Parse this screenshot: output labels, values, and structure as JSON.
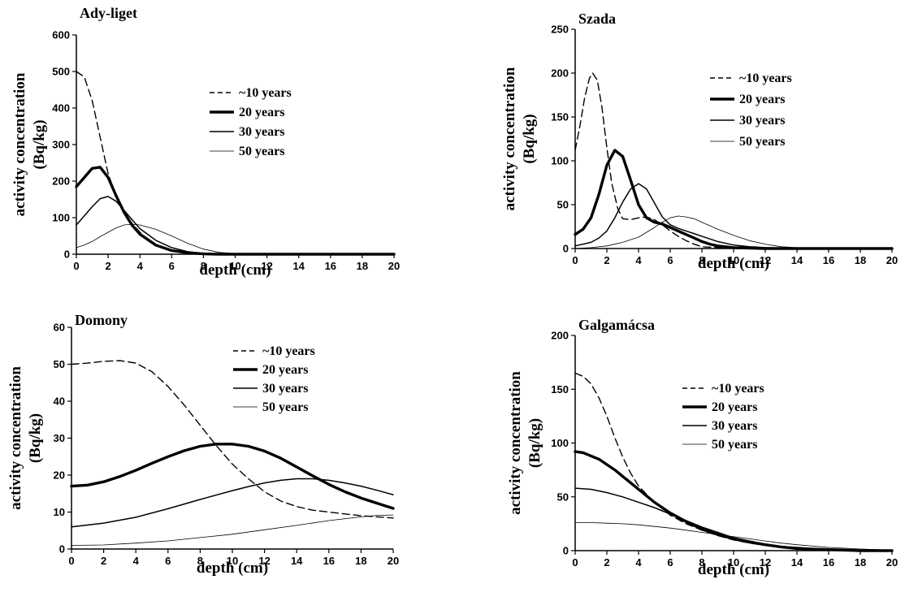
{
  "chart_data": [
    {
      "type": "line",
      "title": "Ady-liget",
      "xlabel": "depth (cm)",
      "ylabel": [
        "activity concentration",
        "(Bq/kg)"
      ],
      "xlim": [
        0,
        20
      ],
      "ylim": [
        0,
        600
      ],
      "xticks": [
        0,
        2,
        4,
        6,
        8,
        10,
        12,
        14,
        16,
        18,
        20
      ],
      "yticks": [
        0,
        100,
        200,
        300,
        400,
        500,
        600
      ],
      "legend_position": "top-right",
      "series": [
        {
          "name": "~10 years",
          "style": "dashed",
          "x": [
            0,
            0.5,
            1,
            1.5,
            2,
            2.5,
            3,
            3.5,
            4,
            4.5,
            5,
            6,
            7,
            8,
            9,
            10,
            12,
            14,
            16,
            18,
            20
          ],
          "y": [
            500,
            485,
            420,
            320,
            220,
            160,
            115,
            85,
            60,
            40,
            25,
            10,
            3,
            1,
            0,
            0,
            0,
            0,
            0,
            0,
            0
          ]
        },
        {
          "name": "20 years",
          "style": "thick",
          "x": [
            0,
            0.5,
            1,
            1.5,
            2,
            2.5,
            3,
            3.5,
            4,
            5,
            6,
            7,
            8,
            9,
            10,
            12,
            14,
            16,
            18,
            20
          ],
          "y": [
            185,
            210,
            235,
            238,
            210,
            160,
            115,
            80,
            55,
            25,
            10,
            4,
            1,
            0,
            0,
            0,
            0,
            0,
            0,
            0
          ]
        },
        {
          "name": "30 years",
          "style": "medium",
          "x": [
            0,
            0.5,
            1,
            1.5,
            2,
            2.5,
            3,
            3.5,
            4,
            5,
            6,
            7,
            8,
            9,
            10,
            12,
            14,
            16,
            18,
            20
          ],
          "y": [
            80,
            105,
            130,
            152,
            158,
            145,
            120,
            95,
            70,
            38,
            18,
            7,
            2,
            1,
            0,
            0,
            0,
            0,
            0,
            0
          ]
        },
        {
          "name": "50 years",
          "style": "thin",
          "x": [
            0,
            0.5,
            1,
            1.5,
            2,
            2.5,
            3,
            3.5,
            4,
            5,
            6,
            7,
            8,
            9,
            10,
            12,
            14,
            16,
            18,
            20
          ],
          "y": [
            18,
            25,
            35,
            48,
            60,
            72,
            80,
            82,
            80,
            68,
            50,
            30,
            14,
            5,
            2,
            0,
            0,
            0,
            0,
            0
          ]
        }
      ]
    },
    {
      "type": "line",
      "title": "Szada",
      "xlabel": "depth (cm)",
      "ylabel": [
        "activity concentration",
        "(Bq/kg)"
      ],
      "xlim": [
        0,
        20
      ],
      "ylim": [
        0,
        250
      ],
      "xticks": [
        0,
        2,
        4,
        6,
        8,
        10,
        12,
        14,
        16,
        18,
        20
      ],
      "yticks": [
        0,
        50,
        100,
        150,
        200,
        250
      ],
      "legend_position": "top-right",
      "series": [
        {
          "name": "~10 years",
          "style": "dashed",
          "x": [
            0,
            0.3,
            0.6,
            0.9,
            1.1,
            1.4,
            1.7,
            2,
            2.3,
            2.7,
            3,
            3.5,
            4,
            4.5,
            5,
            5.5,
            6,
            6.5,
            7,
            7.5,
            8,
            9,
            10,
            12,
            14,
            16,
            18,
            20
          ],
          "y": [
            112,
            140,
            172,
            194,
            200,
            192,
            160,
            115,
            75,
            45,
            34,
            33,
            35,
            36,
            33,
            27,
            20,
            14,
            9,
            5,
            2,
            1,
            0,
            0,
            0,
            0,
            0,
            0
          ]
        },
        {
          "name": "20 years",
          "style": "thick",
          "x": [
            0,
            0.5,
            1,
            1.5,
            2,
            2.5,
            3,
            3.5,
            4,
            4.5,
            5,
            5.5,
            6,
            6.5,
            7,
            7.5,
            8,
            8.5,
            9,
            10,
            12,
            14,
            16,
            18,
            20
          ],
          "y": [
            16,
            22,
            35,
            62,
            95,
            112,
            105,
            78,
            50,
            35,
            30,
            28,
            24,
            20,
            16,
            12,
            8,
            5,
            3,
            1,
            0,
            0,
            0,
            0,
            0
          ]
        },
        {
          "name": "30 years",
          "style": "medium",
          "x": [
            0,
            1,
            1.5,
            2,
            2.5,
            3,
            3.5,
            4,
            4.5,
            5,
            5.5,
            6,
            6.5,
            7,
            7.5,
            8,
            9,
            10,
            11,
            12,
            14,
            16,
            18,
            20
          ],
          "y": [
            3,
            7,
            12,
            20,
            35,
            53,
            68,
            74,
            68,
            52,
            36,
            27,
            23,
            20,
            17,
            14,
            8,
            4,
            2,
            1,
            0,
            0,
            0,
            0
          ]
        },
        {
          "name": "50 years",
          "style": "thin",
          "x": [
            0,
            1,
            2,
            3,
            4,
            5,
            5.5,
            6,
            6.5,
            7,
            7.5,
            8,
            9,
            10,
            11,
            12,
            13,
            14,
            16,
            18,
            20
          ],
          "y": [
            0,
            1,
            3,
            7,
            13,
            24,
            30,
            35,
            37,
            36,
            34,
            30,
            22,
            15,
            9,
            5,
            2,
            1,
            0,
            0,
            0
          ]
        }
      ]
    },
    {
      "type": "line",
      "title": "Domony",
      "xlabel": "depth (cm)",
      "ylabel": [
        "activity concentration",
        "(Bq/kg)"
      ],
      "xlim": [
        0,
        20
      ],
      "ylim": [
        0,
        60
      ],
      "xticks": [
        0,
        2,
        4,
        6,
        8,
        10,
        12,
        14,
        16,
        18,
        20
      ],
      "yticks": [
        0,
        10,
        20,
        30,
        40,
        50,
        60
      ],
      "legend_position": "top-right",
      "series": [
        {
          "name": "~10 years",
          "style": "dashed",
          "x": [
            0,
            1,
            2,
            3,
            4,
            5,
            6,
            7,
            8,
            9,
            10,
            11,
            12,
            13,
            14,
            15,
            16,
            17,
            18,
            19,
            20
          ],
          "y": [
            50,
            50.3,
            50.8,
            51,
            50.3,
            48,
            44,
            39,
            33.5,
            28,
            23,
            19,
            15.5,
            13,
            11.5,
            10.5,
            10,
            9.5,
            9,
            8.7,
            8.4
          ]
        },
        {
          "name": "20 years",
          "style": "thick",
          "x": [
            0,
            1,
            2,
            3,
            4,
            5,
            6,
            7,
            8,
            9,
            10,
            11,
            12,
            13,
            14,
            15,
            16,
            17,
            18,
            19,
            20
          ],
          "y": [
            17,
            17.3,
            18.2,
            19.6,
            21.3,
            23.2,
            25,
            26.6,
            27.8,
            28.4,
            28.4,
            27.8,
            26.5,
            24.6,
            22.2,
            19.8,
            17.5,
            15.5,
            13.8,
            12.4,
            11
          ]
        },
        {
          "name": "30 years",
          "style": "medium",
          "x": [
            0,
            2,
            4,
            6,
            8,
            10,
            11,
            12,
            13,
            14,
            15,
            16,
            17,
            18,
            19,
            20
          ],
          "y": [
            6,
            7,
            8.6,
            10.9,
            13.4,
            15.8,
            16.9,
            17.9,
            18.6,
            19,
            19,
            18.6,
            17.9,
            17,
            15.9,
            14.7
          ]
        },
        {
          "name": "50 years",
          "style": "thin",
          "x": [
            0,
            2,
            4,
            6,
            8,
            10,
            12,
            14,
            16,
            18,
            19,
            20
          ],
          "y": [
            1,
            1.1,
            1.6,
            2.2,
            3.1,
            4,
            5.2,
            6.4,
            7.7,
            8.7,
            9.1,
            9.2
          ]
        }
      ]
    },
    {
      "type": "line",
      "title": "Galgamácsa",
      "xlabel": "depth (cm)",
      "ylabel": [
        "activity concentration",
        "(Bq/kg)"
      ],
      "xlim": [
        0,
        20
      ],
      "ylim": [
        0,
        200
      ],
      "xticks": [
        0,
        2,
        4,
        6,
        8,
        10,
        12,
        14,
        16,
        18,
        20
      ],
      "yticks": [
        0,
        50,
        100,
        150,
        200
      ],
      "legend_position": "top-right",
      "series": [
        {
          "name": "~10 years",
          "style": "dashed",
          "x": [
            0,
            0.5,
            1,
            1.5,
            2,
            2.5,
            3,
            3.5,
            4,
            5,
            6,
            7,
            8,
            9,
            10,
            11,
            12,
            13,
            14,
            16,
            18,
            20
          ],
          "y": [
            165,
            162,
            155,
            142,
            125,
            105,
            87,
            72,
            60,
            45,
            33,
            25,
            19,
            14,
            10,
            7,
            5,
            3,
            2,
            1,
            0,
            0
          ]
        },
        {
          "name": "20 years",
          "style": "thick",
          "x": [
            0,
            0.5,
            1,
            1.5,
            2,
            2.5,
            3,
            3.5,
            4,
            5,
            6,
            7,
            8,
            9,
            10,
            11,
            12,
            13,
            14,
            16,
            18,
            20
          ],
          "y": [
            92,
            91,
            88,
            85,
            80,
            75,
            69,
            63,
            57,
            45,
            35,
            27,
            20,
            15,
            11,
            8,
            5.5,
            3.5,
            2,
            1,
            0,
            0
          ]
        },
        {
          "name": "30 years",
          "style": "medium",
          "x": [
            0,
            1,
            2,
            3,
            4,
            5,
            6,
            7,
            8,
            9,
            10,
            11,
            12,
            13,
            14,
            16,
            18,
            20
          ],
          "y": [
            58,
            57,
            54,
            50,
            45,
            40,
            34,
            28,
            22,
            17,
            12,
            9,
            6,
            4,
            3,
            1,
            0.5,
            0
          ]
        },
        {
          "name": "50 years",
          "style": "thin",
          "x": [
            0,
            1,
            2,
            3,
            4,
            5,
            6,
            7,
            8,
            9,
            10,
            11,
            12,
            13,
            14,
            16,
            18,
            20
          ],
          "y": [
            26,
            26,
            25.5,
            25,
            24,
            22.5,
            21,
            19,
            17,
            15,
            13,
            11,
            9,
            7,
            5.5,
            3,
            1.5,
            0.5
          ]
        }
      ]
    }
  ]
}
